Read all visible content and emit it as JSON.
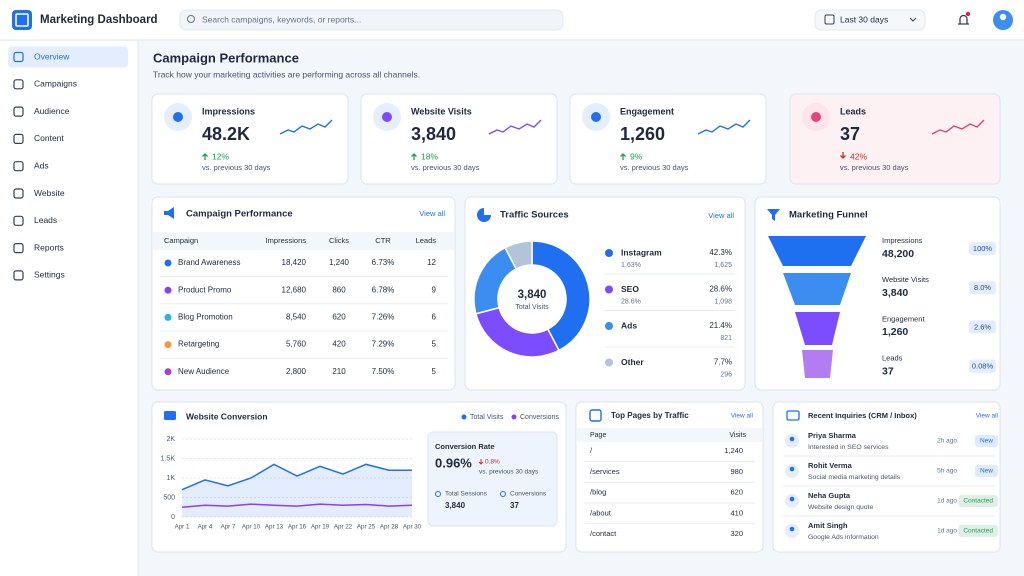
{
  "header": {
    "title": "Marketing Dashboard",
    "search": "Search campaigns, keywords, or reports...",
    "range": "Last 30 days"
  },
  "nav": [
    "Overview",
    "Campaigns",
    "Audience",
    "Content",
    "Ads",
    "Website",
    "Leads",
    "Reports",
    "Settings"
  ],
  "page": {
    "title": "Campaign Performance",
    "subtitle": "Track how your marketing activities are performing across all channels."
  },
  "kpis": [
    {
      "label": "Impressions",
      "value": "48.2K",
      "change": "12%",
      "trend": "up",
      "note": "vs. previous 30 days",
      "color": "#1f6ff0"
    },
    {
      "label": "Website Visits",
      "value": "3,840",
      "change": "18%",
      "trend": "up",
      "note": "vs. previous 30 days",
      "color": "#7c4dff"
    },
    {
      "label": "Engagement",
      "value": "1,260",
      "change": "9%",
      "trend": "up",
      "note": "vs. previous 30 days",
      "color": "#1f6ff0"
    },
    {
      "label": "Leads",
      "value": "37",
      "change": "42%",
      "trend": "down",
      "note": "vs. previous 30 days",
      "color": "#e0457b"
    }
  ],
  "campaigns": {
    "title": "Campaign Performance",
    "link": "View all",
    "columns": [
      "Campaign",
      "Impressions",
      "Clicks",
      "CTR",
      "Leads"
    ],
    "rows": [
      [
        "Brand Awareness",
        "18,420",
        "1,240",
        "6.73%",
        "12"
      ],
      [
        "Product Promo",
        "12,680",
        "860",
        "6.78%",
        "9"
      ],
      [
        "Blog Promotion",
        "8,540",
        "620",
        "7.26%",
        "6"
      ],
      [
        "Retargeting",
        "5,760",
        "420",
        "7.29%",
        "5"
      ],
      [
        "New Audience",
        "2,800",
        "210",
        "7.50%",
        "5"
      ]
    ],
    "colors": [
      "#1f6ff0",
      "#8b3ff0",
      "#22b8d8",
      "#f59a3c",
      "#a23fd6"
    ]
  },
  "traffic": {
    "type": "pie",
    "title": "Traffic Sources",
    "link": "View all",
    "total": "3,840",
    "total_label": "Total Visits",
    "categories": [
      "Instagram",
      "SEO",
      "Ads",
      "Other"
    ],
    "values": [
      42.3,
      28.6,
      21.4,
      7.7
    ],
    "value_labels": [
      "42.3%",
      "28.6%",
      "21.4%",
      "7.7%"
    ],
    "colors": [
      "#1f6ff0",
      "#7c4dff",
      "#3b8ef0",
      "#b3c3da"
    ],
    "details": [
      "1.63%",
      "28.6%",
      null,
      null
    ],
    "visits": [
      "1,625",
      "1,098",
      "821",
      "296"
    ]
  },
  "funnel": {
    "title": "Marketing Funnel",
    "stages": [
      {
        "label": "Impressions",
        "value": "48,200",
        "pct": "100%"
      },
      {
        "label": "Website Visits",
        "value": "3,840",
        "pct": "8.0%"
      },
      {
        "label": "Engagement",
        "value": "1,260",
        "pct": "2.6%"
      },
      {
        "label": "Leads",
        "value": "37",
        "pct": "0.08%"
      }
    ]
  },
  "conversion": {
    "type": "line",
    "title": "Website Conversion",
    "categories": [
      "Apr 1",
      "Apr 4",
      "Apr 7",
      "Apr 10",
      "Apr 13",
      "Apr 16",
      "Apr 19",
      "Apr 22",
      "Apr 25",
      "Apr 28",
      "Apr 30"
    ],
    "series": [
      {
        "name": "Total Visits",
        "color": "#1f6ff0",
        "values": [
          700,
          950,
          800,
          1000,
          1350,
          1050,
          1300,
          1100,
          1350,
          1200,
          1200
        ]
      },
      {
        "name": "Conversions",
        "color": "#8b3ff0",
        "values": [
          250,
          300,
          280,
          330,
          300,
          280,
          330,
          300,
          320,
          280,
          300
        ]
      }
    ],
    "ylim": [
      0,
      2000
    ],
    "yticks": [
      0,
      500,
      {
        "value": 1000,
        "label": "1K"
      },
      {
        "value": 1500,
        "label": "1.5K"
      },
      {
        "value": 2000,
        "label": "2K"
      }
    ],
    "grid": true,
    "summary": {
      "title": "Conversion Rate",
      "value": "0.96%",
      "change": "0.8%",
      "note": "vs. previous 30 days",
      "sessions_label": "Total Sessions",
      "sessions": "3,840",
      "conversions_label": "Conversions",
      "conversions": "37"
    }
  },
  "pages": {
    "title": "Top Pages by Traffic",
    "link": "View all",
    "columns": [
      "Page",
      "Visits"
    ],
    "rows": [
      [
        "/",
        "1,240"
      ],
      [
        "/services",
        "980"
      ],
      [
        "/blog",
        "620"
      ],
      [
        "/about",
        "410"
      ],
      [
        "/contact",
        "320"
      ]
    ]
  },
  "inquiries": {
    "title": "Recent Inquiries (CRM / Inbox)",
    "link": "View all",
    "items": [
      {
        "name": "Priya Sharma",
        "detail": "Interested in SEO services",
        "time": "2h ago",
        "status": "New",
        "color": "#1f6ff0"
      },
      {
        "name": "Rohit Verma",
        "detail": "Social media marketing details",
        "time": "5h ago",
        "status": "New",
        "color": "#1f6ff0"
      },
      {
        "name": "Neha Gupta",
        "detail": "Website design quote",
        "time": "1d ago",
        "status": "Contacted",
        "color": "#1f9d55"
      },
      {
        "name": "Amit Singh",
        "detail": "Google Ads information",
        "time": "1d ago",
        "status": "Contacted",
        "color": "#1f9d55"
      }
    ]
  }
}
